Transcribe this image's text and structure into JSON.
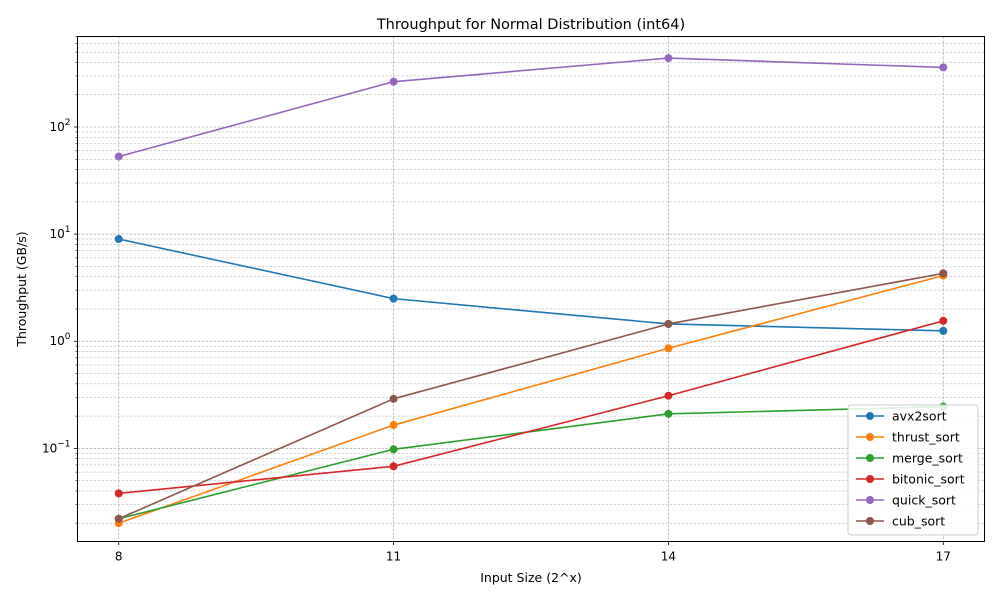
{
  "chart_data": {
    "type": "line",
    "title": "Throughput for Normal Distribution (int64)",
    "xlabel": "Input Size (2^x)",
    "ylabel": "Throughput (GB/s)",
    "y_scale": "log",
    "ylim": [
      0.0135,
      700
    ],
    "xlim": [
      7.55,
      17.45
    ],
    "x": [
      8,
      11,
      14,
      17
    ],
    "x_tick_labels": [
      "8",
      "11",
      "14",
      "17"
    ],
    "y_ticks": [
      {
        "value": 0.1,
        "base": "10",
        "exp": "−1"
      },
      {
        "value": 1,
        "base": "10",
        "exp": "0"
      },
      {
        "value": 10,
        "base": "10",
        "exp": "1"
      },
      {
        "value": 100,
        "base": "10",
        "exp": "2"
      }
    ],
    "grid": true,
    "legend_position": "lower-right",
    "series": [
      {
        "name": "avx2sort",
        "color": "#1f77b4",
        "values": [
          9.0,
          2.5,
          1.45,
          1.25
        ]
      },
      {
        "name": "thrust_sort",
        "color": "#ff7f0e",
        "values": [
          0.02,
          0.165,
          0.86,
          4.1
        ]
      },
      {
        "name": "merge_sort",
        "color": "#2ca02c",
        "values": [
          0.022,
          0.098,
          0.21,
          0.245
        ]
      },
      {
        "name": "bitonic_sort",
        "color": "#d62728",
        "values": [
          0.038,
          0.068,
          0.31,
          1.55
        ]
      },
      {
        "name": "quick_sort",
        "color": "#9467bd",
        "values": [
          53,
          265,
          440,
          360
        ]
      },
      {
        "name": "cub_sort",
        "color": "#8c564b",
        "values": [
          0.022,
          0.29,
          1.45,
          4.3
        ]
      }
    ]
  }
}
